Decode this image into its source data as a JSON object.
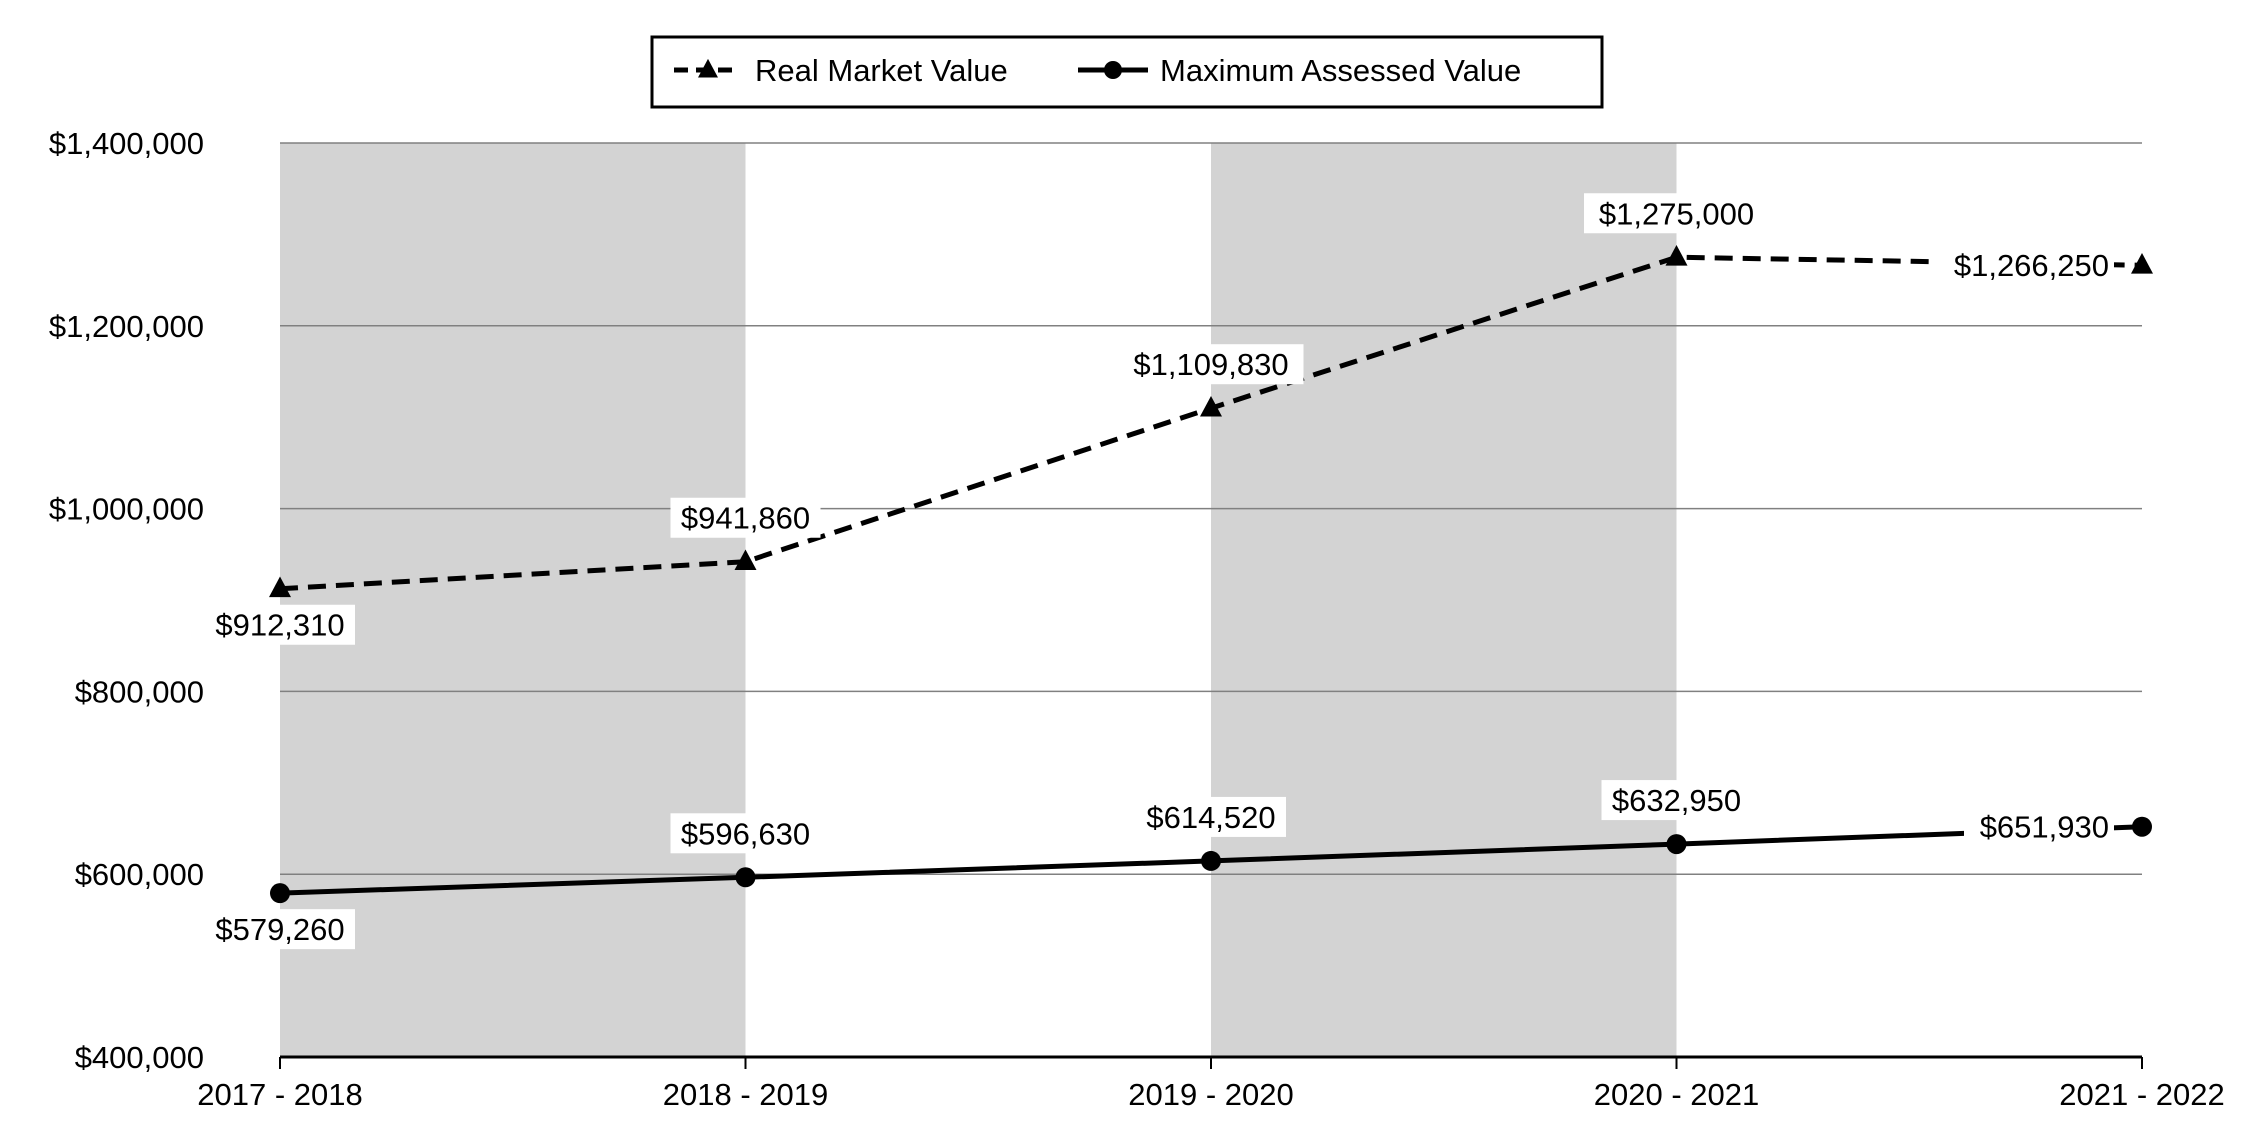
{
  "chart_data": {
    "type": "line",
    "title": "",
    "xlabel": "",
    "ylabel": "",
    "categories": [
      "2017 - 2018",
      "2018 - 2019",
      "2019 - 2020",
      "2020 - 2021",
      "2021 - 2022"
    ],
    "ylim": [
      400000,
      1400000
    ],
    "yticks": [
      400000,
      600000,
      800000,
      1000000,
      1200000,
      1400000
    ],
    "ytick_labels": [
      "$400,000",
      "$600,000",
      "$800,000",
      "$1,000,000",
      "$1,200,000",
      "$1,400,000"
    ],
    "grid": true,
    "shaded_bands": [
      "2017 - 2018",
      "2019 - 2020"
    ],
    "legend_position": "top-center",
    "colors": {
      "line": "#000000",
      "band": "#d3d3d3",
      "grid": "#808080"
    },
    "series": [
      {
        "name": "Real Market Value",
        "style": "dashed",
        "marker": "triangle",
        "values": [
          912310,
          941860,
          1109830,
          1275000,
          1266250
        ],
        "labels": [
          "$912,310",
          "$941,860",
          "$1,109,830",
          "$1,275,000",
          "$1,266,250"
        ]
      },
      {
        "name": "Maximum Assessed Value",
        "style": "solid",
        "marker": "circle",
        "values": [
          579260,
          596630,
          614520,
          632950,
          651930
        ],
        "labels": [
          "$579,260",
          "$596,630",
          "$614,520",
          "$632,950",
          "$651,930"
        ]
      }
    ]
  }
}
